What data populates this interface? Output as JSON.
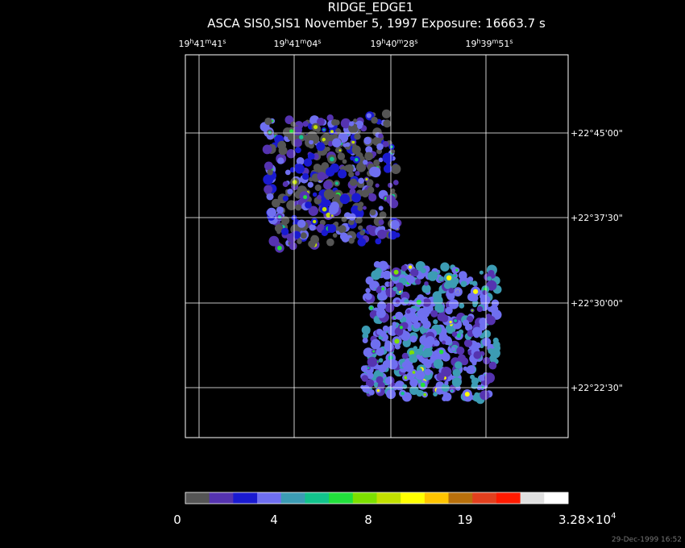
{
  "header": {
    "title": "RIDGE_EDGE1",
    "subtitle": "ASCA SIS0,SIS1 November 5, 1997 Exposure: 16663.7 s"
  },
  "axes": {
    "ra_units": [
      "h",
      "m",
      "s"
    ],
    "ra_labels": [
      {
        "h": "19",
        "m": "41",
        "s": "41"
      },
      {
        "h": "19",
        "m": "41",
        "s": "04"
      },
      {
        "h": "19",
        "m": "40",
        "s": "28"
      },
      {
        "h": "19",
        "m": "39",
        "s": "51"
      }
    ],
    "dec_labels": [
      "+22°45'00\"",
      "+22°37'30\"",
      "+22°30'00\"",
      "+22°22'30\""
    ]
  },
  "colorbar": {
    "colors": [
      "#555555",
      "#5533b0",
      "#1a1ad0",
      "#6f6ff0",
      "#3c9cb4",
      "#12c38c",
      "#22e03c",
      "#7de000",
      "#c2e000",
      "#ffff00",
      "#ffc400",
      "#b8700c",
      "#e2401e",
      "#ff1a00",
      "#e0e0e0",
      "#ffffff"
    ],
    "labels": [
      "0",
      "4",
      "8",
      "19",
      {
        "mantissa": "3.28×10",
        "exponent": "4"
      }
    ]
  },
  "footer": {
    "timestamp": "29-Dec-1999 16:52"
  }
}
